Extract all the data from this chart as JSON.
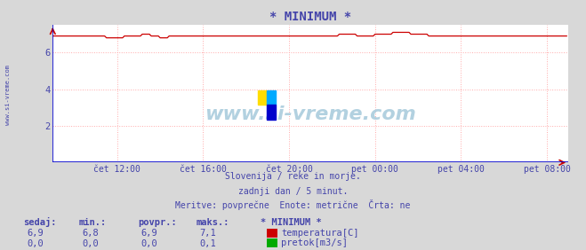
{
  "title": "* MINIMUM *",
  "bg_color": "#d8d8d8",
  "plot_bg_color": "#ffffff",
  "title_color": "#4444aa",
  "grid_color": "#ffaaaa",
  "axis_color": "#0000cc",
  "arrow_color": "#cc0000",
  "text_color": "#4444aa",
  "watermark": "www.si-vreme.com",
  "subtitle_lines": [
    "Slovenija / reke in morje.",
    "zadnji dan / 5 minut.",
    "Meritve: povprečne  Enote: metrične  Črta: ne"
  ],
  "xlim": [
    0,
    288
  ],
  "ylim": [
    0,
    7.5
  ],
  "yticks": [
    2,
    4,
    6
  ],
  "xtick_labels": [
    "čet 12:00",
    "čet 16:00",
    "čet 20:00",
    "pet 00:00",
    "pet 04:00",
    "pet 08:00"
  ],
  "xtick_positions": [
    36,
    84,
    132,
    180,
    228,
    276
  ],
  "temp_color": "#cc0000",
  "flow_color": "#0000cc",
  "legend_items": [
    {
      "label": "temperatura[C]",
      "color": "#cc0000"
    },
    {
      "label": "pretok[m3/s]",
      "color": "#00aa00"
    }
  ],
  "stats_headers": [
    "sedaj:",
    "min.:",
    "povpr.:",
    "maks.:",
    "* MINIMUM *"
  ],
  "stats_row1": [
    "6,9",
    "6,8",
    "6,9",
    "7,1",
    ""
  ],
  "stats_row2": [
    "0,0",
    "0,0",
    "0,0",
    "0,1",
    ""
  ],
  "side_label": "www.si-vreme.com",
  "temp_data": [
    6.9,
    6.9,
    6.9,
    6.9,
    6.9,
    6.9,
    6.9,
    6.9,
    6.9,
    6.9,
    6.9,
    6.9,
    6.9,
    6.9,
    6.9,
    6.9,
    6.9,
    6.9,
    6.9,
    6.9,
    6.9,
    6.9,
    6.9,
    6.9,
    6.9,
    6.9,
    6.9,
    6.9,
    6.9,
    6.9,
    6.8,
    6.8,
    6.8,
    6.8,
    6.8,
    6.8,
    6.8,
    6.8,
    6.8,
    6.8,
    6.9,
    6.9,
    6.9,
    6.9,
    6.9,
    6.9,
    6.9,
    6.9,
    6.9,
    6.9,
    7.0,
    7.0,
    7.0,
    7.0,
    7.0,
    6.9,
    6.9,
    6.9,
    6.9,
    6.9,
    6.8,
    6.8,
    6.8,
    6.8,
    6.8,
    6.9,
    6.9,
    6.9,
    6.9,
    6.9,
    6.9,
    6.9,
    6.9,
    6.9,
    6.9,
    6.9,
    6.9,
    6.9,
    6.9,
    6.9,
    6.9,
    6.9,
    6.9,
    6.9,
    6.9,
    6.9,
    6.9,
    6.9,
    6.9,
    6.9,
    6.9,
    6.9,
    6.9,
    6.9,
    6.9,
    6.9,
    6.9,
    6.9,
    6.9,
    6.9,
    6.9,
    6.9,
    6.9,
    6.9,
    6.9,
    6.9,
    6.9,
    6.9,
    6.9,
    6.9,
    6.9,
    6.9,
    6.9,
    6.9,
    6.9,
    6.9,
    6.9,
    6.9,
    6.9,
    6.9,
    6.9,
    6.9,
    6.9,
    6.9,
    6.9,
    6.9,
    6.9,
    6.9,
    6.9,
    6.9,
    6.9,
    6.9,
    6.9,
    6.9,
    6.9,
    6.9,
    6.9,
    6.9,
    6.9,
    6.9,
    6.9,
    6.9,
    6.9,
    6.9,
    6.9,
    6.9,
    6.9,
    6.9,
    6.9,
    6.9,
    6.9,
    6.9,
    6.9,
    6.9,
    6.9,
    6.9,
    6.9,
    6.9,
    6.9,
    6.9,
    7.0,
    7.0,
    7.0,
    7.0,
    7.0,
    7.0,
    7.0,
    7.0,
    7.0,
    7.0,
    6.9,
    6.9,
    6.9,
    6.9,
    6.9,
    6.9,
    6.9,
    6.9,
    6.9,
    6.9,
    7.0,
    7.0,
    7.0,
    7.0,
    7.0,
    7.0,
    7.0,
    7.0,
    7.0,
    7.0,
    7.1,
    7.1,
    7.1,
    7.1,
    7.1,
    7.1,
    7.1,
    7.1,
    7.1,
    7.1,
    7.0,
    7.0,
    7.0,
    7.0,
    7.0,
    7.0,
    7.0,
    7.0,
    7.0,
    7.0,
    6.9,
    6.9,
    6.9,
    6.9,
    6.9,
    6.9,
    6.9,
    6.9,
    6.9,
    6.9,
    6.9,
    6.9,
    6.9,
    6.9,
    6.9,
    6.9,
    6.9,
    6.9,
    6.9,
    6.9,
    6.9,
    6.9,
    6.9,
    6.9,
    6.9,
    6.9,
    6.9,
    6.9,
    6.9,
    6.9,
    6.9,
    6.9,
    6.9,
    6.9,
    6.9,
    6.9,
    6.9,
    6.9,
    6.9,
    6.9,
    6.9,
    6.9,
    6.9,
    6.9,
    6.9,
    6.9,
    6.9,
    6.9,
    6.9,
    6.9,
    6.9,
    6.9,
    6.9,
    6.9,
    6.9,
    6.9,
    6.9,
    6.9,
    6.9,
    6.9,
    6.9,
    6.9,
    6.9,
    6.9,
    6.9,
    6.9,
    6.9,
    6.9,
    6.9,
    6.9,
    6.9,
    6.9,
    6.9,
    6.9,
    6.9,
    6.9,
    6.9,
    6.9
  ]
}
